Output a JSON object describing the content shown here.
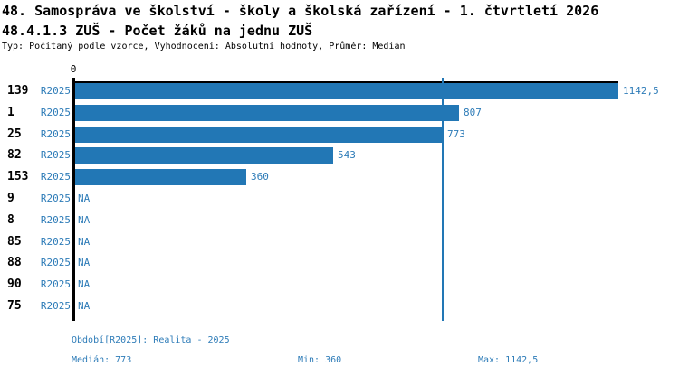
{
  "title_line1": "48. Samospráva ve školství - školy a školská zařízení - 1. čtvrtletí 2026",
  "title_line2": "48.4.1.3 ZUŠ - Počet žáků na jednu ZUŠ",
  "subtitle": "Typ: Počítaný podle vzorce, Vyhodnocení: Absolutní hodnoty, Průměr: Medián",
  "axis": {
    "zero_label": "0"
  },
  "colors": {
    "bar": "#2277b5",
    "text_blue": "#2e7cb8",
    "axis": "#000000"
  },
  "chart_data": {
    "type": "bar",
    "orientation": "horizontal",
    "title": "48.4.1.3 ZUŠ - Počet žáků na jednu ZUŠ",
    "categories": [
      "139",
      "1",
      "25",
      "82",
      "153",
      "9",
      "8",
      "85",
      "88",
      "90",
      "75"
    ],
    "series_label": "R2025",
    "values": [
      1142.5,
      807,
      773,
      543,
      360,
      null,
      null,
      null,
      null,
      null,
      null
    ],
    "value_labels": [
      "1142,5",
      "807",
      "773",
      "543",
      "360",
      "NA",
      "NA",
      "NA",
      "NA",
      "NA",
      "NA"
    ],
    "xlim": [
      0,
      1142.5
    ],
    "median_line_value": 773,
    "grid": false,
    "legend": false
  },
  "footer": {
    "period": "Období[R2025]: Realita - 2025",
    "median": "Medián: 773",
    "min": "Min: 360",
    "max": "Max: 1142,5"
  }
}
